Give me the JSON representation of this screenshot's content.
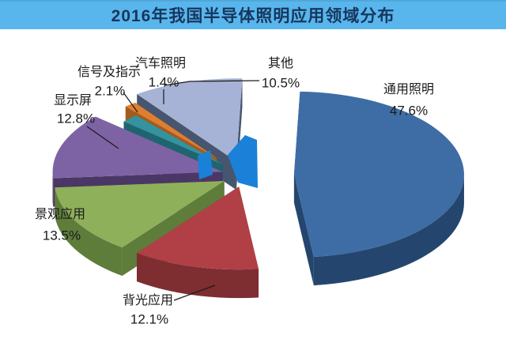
{
  "title": {
    "text": "2016年我国半导体照明应用领域分布"
  },
  "colors": {
    "title_bar_bg": "#58B6EC",
    "title_text": "#17365D",
    "background": "#FFFFFF",
    "label_text": "#1A1A1A",
    "leader_line": "#1A1A1A",
    "center_highlight": "#1B80D8"
  },
  "chart_data": {
    "type": "pie",
    "style": "3d-exploded",
    "title": "2016年我国半导体照明应用领域分布",
    "unit": "%",
    "legend_position": "none",
    "data_labels": "name-and-percent",
    "series": [
      {
        "id": "general-lighting",
        "name": "通用照明",
        "value": 47.6,
        "color": "#3E6DA5",
        "side_color": "#24466E"
      },
      {
        "id": "backlight",
        "name": "背光应用",
        "value": 12.1,
        "color": "#B04045",
        "side_color": "#7E2D31"
      },
      {
        "id": "landscape",
        "name": "景观应用",
        "value": 13.5,
        "color": "#8FB05A",
        "side_color": "#5E7D3B"
      },
      {
        "id": "display-screen",
        "name": "显示屏",
        "value": 12.8,
        "color": "#7E63A4",
        "side_color": "#4A3766"
      },
      {
        "id": "signal-indication",
        "name": "信号及指示",
        "value": 2.1,
        "color": "#35929F",
        "side_color": "#1F6570"
      },
      {
        "id": "automotive-lighting",
        "name": "汽车照明",
        "value": 1.4,
        "color": "#DE7F2F",
        "side_color": "#A55A1E"
      },
      {
        "id": "others",
        "name": "其他",
        "value": 10.5,
        "color": "#A6B3D6",
        "side_color": "#47566E"
      }
    ]
  }
}
